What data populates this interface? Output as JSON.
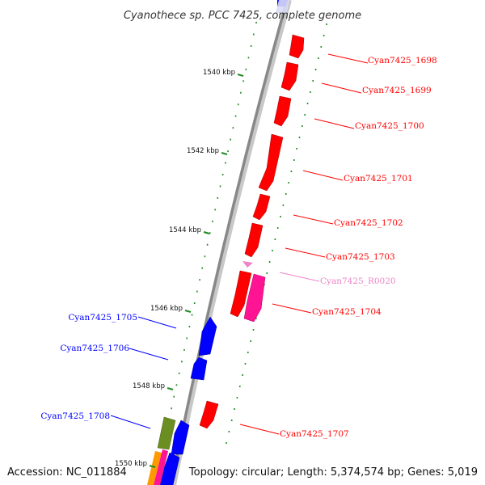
{
  "title": "Cyanothece sp. PCC 7425, complete genome",
  "accession": "Accession: NC_011884",
  "topology": "Topology: circular; Length: 5,374,574 bp; Genes: 5,019",
  "colors": {
    "forward_gene": "#ff0000",
    "reverse_gene": "#0000ff",
    "rna_gene": "#ff1493",
    "rna_label": "#ee82c8",
    "olive_feature": "#6b8e23",
    "orange_feature": "#ff9900",
    "backbone": "#888888",
    "tick": "#228b22"
  },
  "scale_ticks": [
    {
      "label": "1540 kbp"
    },
    {
      "label": "1542 kbp"
    },
    {
      "label": "1544 kbp"
    },
    {
      "label": "1546 kbp"
    },
    {
      "label": "1548 kbp"
    },
    {
      "label": "1550 kbp"
    }
  ],
  "genes": [
    {
      "label": "Cyan7425_1698",
      "strand": "forward",
      "type": "CDS"
    },
    {
      "label": "Cyan7425_1699",
      "strand": "forward",
      "type": "CDS"
    },
    {
      "label": "Cyan7425_1700",
      "strand": "forward",
      "type": "CDS"
    },
    {
      "label": "Cyan7425_1701",
      "strand": "forward",
      "type": "CDS"
    },
    {
      "label": "Cyan7425_1702",
      "strand": "forward",
      "type": "CDS"
    },
    {
      "label": "Cyan7425_1703",
      "strand": "forward",
      "type": "CDS"
    },
    {
      "label": "Cyan7425_R0020",
      "strand": "forward",
      "type": "RNA"
    },
    {
      "label": "Cyan7425_1704",
      "strand": "forward",
      "type": "CDS"
    },
    {
      "label": "Cyan7425_1705",
      "strand": "reverse",
      "type": "CDS"
    },
    {
      "label": "Cyan7425_1706",
      "strand": "reverse",
      "type": "CDS"
    },
    {
      "label": "Cyan7425_1707",
      "strand": "forward",
      "type": "CDS"
    },
    {
      "label": "Cyan7425_1708",
      "strand": "reverse",
      "type": "CDS"
    }
  ]
}
